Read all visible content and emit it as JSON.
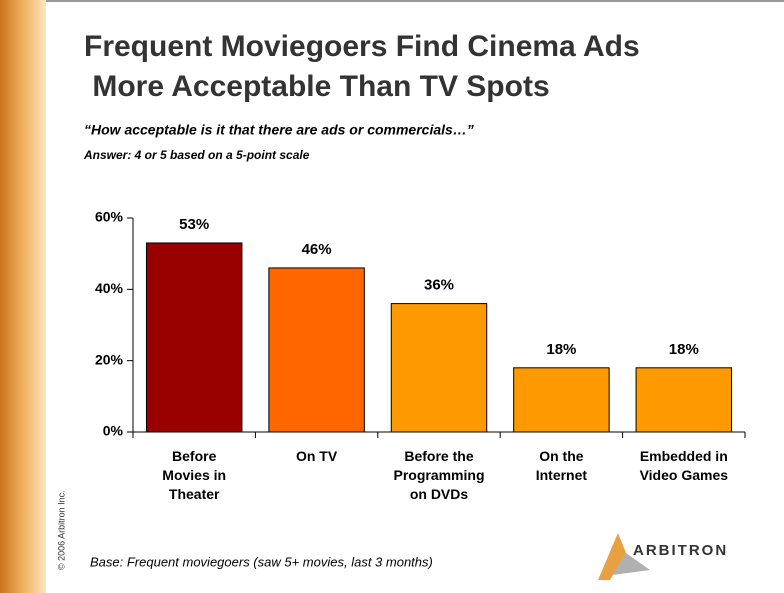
{
  "chart_data": {
    "type": "bar",
    "title": "Frequent Moviegoers Find Cinema Ads More Acceptable Than TV Spots",
    "subtitle": "“How acceptable is it that there are ads or commercials…”",
    "note": "Answer:  4 or 5 based on a 5-point scale",
    "categories": [
      "Before\nMovies in\nTheater",
      "On TV",
      "Before the\nProgramming\non DVDs",
      "On the\nInternet",
      "Embedded in\nVideo Games"
    ],
    "values": [
      53,
      46,
      36,
      18,
      18
    ],
    "value_labels": [
      "53%",
      "46%",
      "36%",
      "18%",
      "18%"
    ],
    "colors": [
      "#990000",
      "#ff6600",
      "#ff9900",
      "#ff9900",
      "#ff9900"
    ],
    "ylim": [
      0,
      60
    ],
    "yticks": [
      {
        "value": 0,
        "label": "0%"
      },
      {
        "value": 20,
        "label": "20%"
      },
      {
        "value": 40,
        "label": "40%"
      },
      {
        "value": 60,
        "label": "60%"
      }
    ],
    "footnote": "Base:  Frequent moviegoers (saw 5+ movies, last 3 months)",
    "copyright": "© 2006 Arbitron Inc.",
    "logo": "ARBITRON"
  }
}
